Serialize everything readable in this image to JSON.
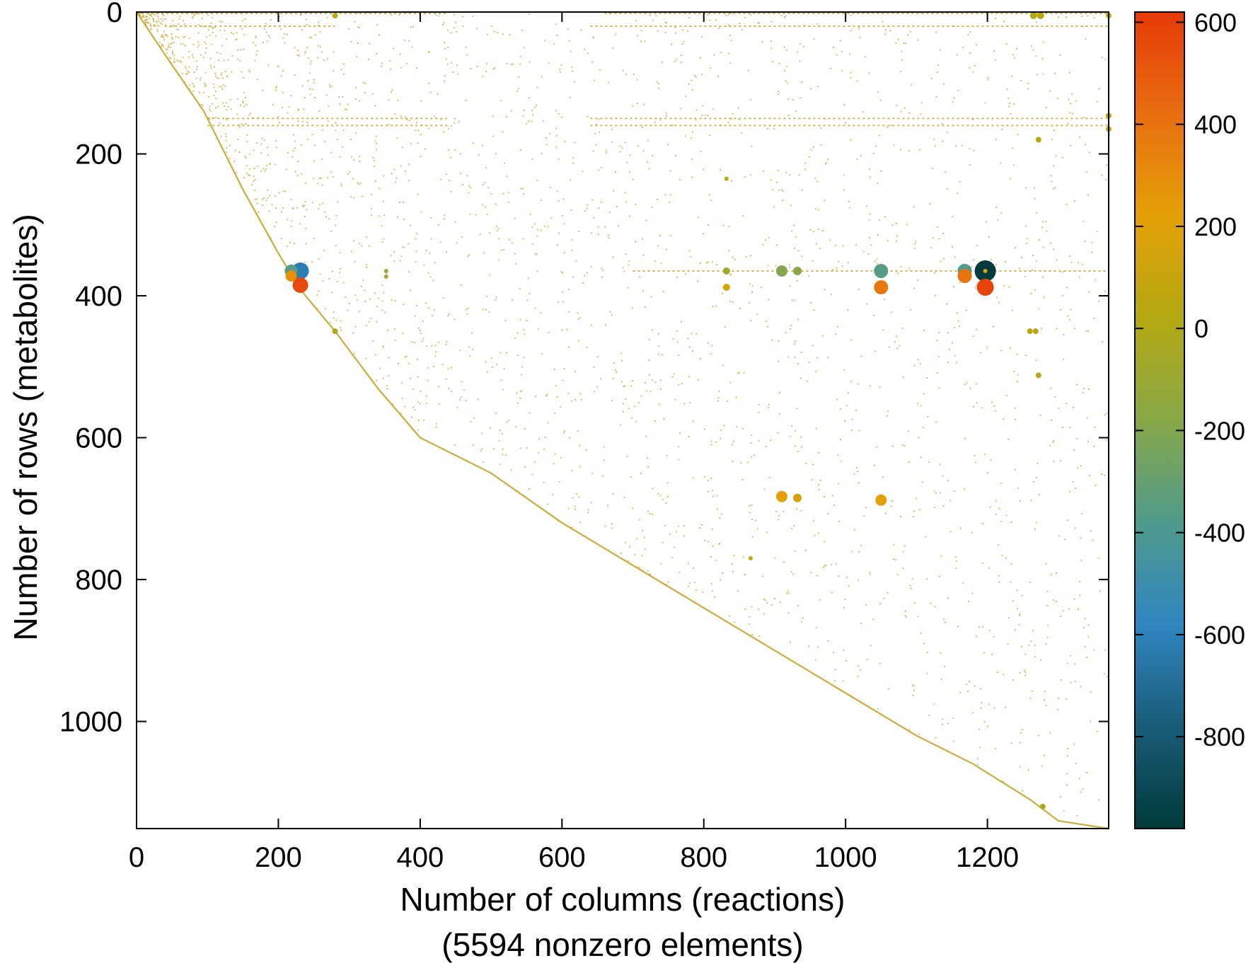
{
  "chart_data": {
    "type": "scatter",
    "subtype": "sparse-matrix-spy",
    "xlabel": "Number of columns (reactions)",
    "xlabel_sub": "(5594 nonzero elements)",
    "ylabel": "Number of rows (metabolites)",
    "xlim": [
      0,
      1371
    ],
    "ylim": [
      1151,
      0
    ],
    "y_inverted": true,
    "x_ticks": [
      0,
      200,
      400,
      600,
      800,
      1000,
      1200
    ],
    "y_ticks": [
      0,
      200,
      400,
      600,
      800,
      1000
    ],
    "colorbar": {
      "range": [
        -980,
        620
      ],
      "ticks": [
        600,
        400,
        200,
        0,
        -200,
        -400,
        -600,
        -800
      ],
      "tick_labels": [
        "600",
        "400",
        "200",
        "0",
        "-200",
        "-400",
        "-600",
        "-800"
      ],
      "colormap": [
        "#003a3a",
        "#1a5c78",
        "#2f86c0",
        "#4f9a8c",
        "#88a848",
        "#b4a812",
        "#e4a008",
        "#e86e10",
        "#e63a08"
      ]
    },
    "background_color": "#c8a832",
    "diagonal_band": [
      [
        0,
        0
      ],
      [
        40,
        60
      ],
      [
        95,
        140
      ],
      [
        150,
        250
      ],
      [
        200,
        340
      ],
      [
        230,
        390
      ],
      [
        280,
        450
      ],
      [
        340,
        530
      ],
      [
        400,
        600
      ],
      [
        500,
        650
      ],
      [
        600,
        720
      ],
      [
        700,
        780
      ],
      [
        800,
        840
      ],
      [
        900,
        900
      ],
      [
        1000,
        960
      ],
      [
        1100,
        1020
      ],
      [
        1180,
        1060
      ],
      [
        1260,
        1110
      ],
      [
        1300,
        1140
      ],
      [
        1371,
        1151
      ]
    ],
    "dense_rows": [
      {
        "y": 2,
        "x0": 0,
        "x1": 440
      },
      {
        "y": 2,
        "x0": 660,
        "x1": 1371
      },
      {
        "y": 20,
        "x0": 40,
        "x1": 280
      },
      {
        "y": 20,
        "x0": 640,
        "x1": 1371
      },
      {
        "y": 150,
        "x0": 100,
        "x1": 440
      },
      {
        "y": 150,
        "x0": 640,
        "x1": 1371
      },
      {
        "y": 160,
        "x0": 100,
        "x1": 440
      },
      {
        "y": 160,
        "x0": 640,
        "x1": 1371
      },
      {
        "y": 365,
        "x0": 700,
        "x1": 1371
      }
    ],
    "points": [
      {
        "x": 218,
        "y": 365,
        "v": -360,
        "size": 9
      },
      {
        "x": 218,
        "y": 372,
        "v": 280,
        "size": 8
      },
      {
        "x": 231,
        "y": 365,
        "v": -620,
        "size": 12
      },
      {
        "x": 231,
        "y": 385,
        "v": 560,
        "size": 11
      },
      {
        "x": 280,
        "y": 450,
        "v": 0,
        "size": 4
      },
      {
        "x": 352,
        "y": 365,
        "v": -120,
        "size": 3
      },
      {
        "x": 352,
        "y": 373,
        "v": -80,
        "size": 3
      },
      {
        "x": 832,
        "y": 365,
        "v": -60,
        "size": 5
      },
      {
        "x": 832,
        "y": 388,
        "v": 180,
        "size": 5
      },
      {
        "x": 910,
        "y": 365,
        "v": -200,
        "size": 8
      },
      {
        "x": 932,
        "y": 365,
        "v": -180,
        "size": 6
      },
      {
        "x": 910,
        "y": 683,
        "v": 220,
        "size": 8
      },
      {
        "x": 932,
        "y": 685,
        "v": 160,
        "size": 6
      },
      {
        "x": 1050,
        "y": 365,
        "v": -360,
        "size": 10
      },
      {
        "x": 1050,
        "y": 388,
        "v": 380,
        "size": 10
      },
      {
        "x": 1050,
        "y": 688,
        "v": 220,
        "size": 8
      },
      {
        "x": 1168,
        "y": 365,
        "v": -380,
        "size": 10
      },
      {
        "x": 1168,
        "y": 372,
        "v": 400,
        "size": 10
      },
      {
        "x": 1197,
        "y": 365,
        "v": -980,
        "size": 15
      },
      {
        "x": 1197,
        "y": 388,
        "v": 580,
        "size": 12
      },
      {
        "x": 1197,
        "y": 365,
        "v": 200,
        "size": 3
      },
      {
        "x": 1272,
        "y": 180,
        "v": 40,
        "size": 4
      },
      {
        "x": 1260,
        "y": 450,
        "v": 40,
        "size": 4
      },
      {
        "x": 1268,
        "y": 450,
        "v": 40,
        "size": 4
      },
      {
        "x": 1272,
        "y": 512,
        "v": 40,
        "size": 4
      },
      {
        "x": 1278,
        "y": 1120,
        "v": 0,
        "size": 4
      },
      {
        "x": 1371,
        "y": 5,
        "v": 80,
        "size": 4
      },
      {
        "x": 1371,
        "y": 146,
        "v": 100,
        "size": 4
      },
      {
        "x": 1371,
        "y": 165,
        "v": 80,
        "size": 4
      },
      {
        "x": 280,
        "y": 5,
        "v": 60,
        "size": 4
      },
      {
        "x": 1265,
        "y": 5,
        "v": 40,
        "size": 5
      },
      {
        "x": 1275,
        "y": 5,
        "v": 40,
        "size": 5
      },
      {
        "x": 832,
        "y": 235,
        "v": 100,
        "size": 3
      },
      {
        "x": 866,
        "y": 770,
        "v": 60,
        "size": 3
      }
    ]
  }
}
